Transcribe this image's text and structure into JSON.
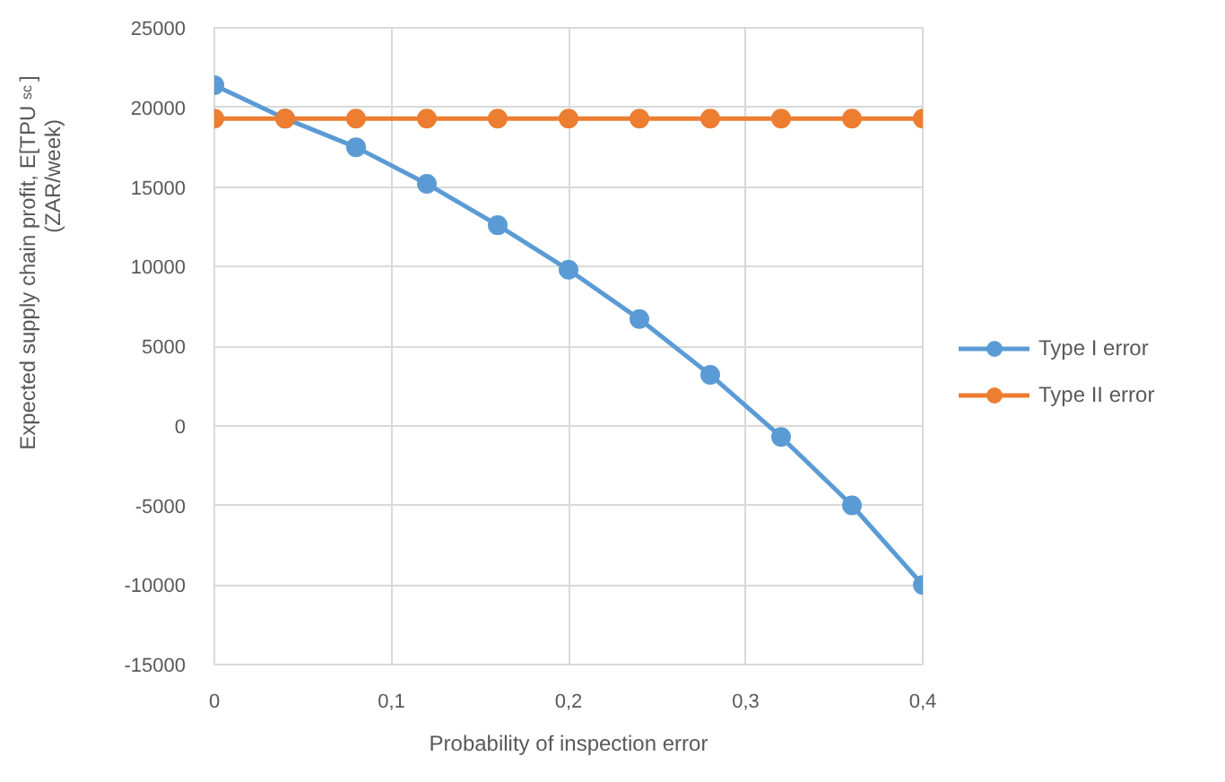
{
  "chart_data": {
    "type": "line",
    "xlabel": "Probability of inspection error",
    "ylabel": "Expected  supply chain profit, E[TPU$_{sc}$] (ZAR/week)",
    "x": [
      0,
      0.04,
      0.08,
      0.12,
      0.16,
      0.2,
      0.24,
      0.28,
      0.32,
      0.36,
      0.4
    ],
    "series": [
      {
        "name": "Type I error",
        "color": "#5b9bd5",
        "values": [
          21400,
          19300,
          17500,
          15200,
          12600,
          9800,
          6700,
          3200,
          -700,
          -5000,
          -10000
        ]
      },
      {
        "name": "Type II error",
        "color": "#ed7d31",
        "values": [
          19300,
          19300,
          19300,
          19300,
          19300,
          19300,
          19300,
          19300,
          19300,
          19300,
          19300
        ]
      }
    ],
    "xlim": [
      0,
      0.4
    ],
    "xticks": [
      0,
      {
        "value": 0.1,
        "label": "0,1"
      },
      {
        "value": 0.2,
        "label": "0,2"
      },
      {
        "value": 0.3,
        "label": "0,3"
      },
      {
        "value": 0.4,
        "label": "0,4"
      }
    ],
    "ylim": [
      -15000,
      25000
    ],
    "yticks": [
      -15000,
      -10000,
      -5000,
      0,
      5000,
      10000,
      15000,
      20000,
      25000
    ],
    "grid": true,
    "legend": "right",
    "marker": "circle",
    "line_style": "solid"
  }
}
